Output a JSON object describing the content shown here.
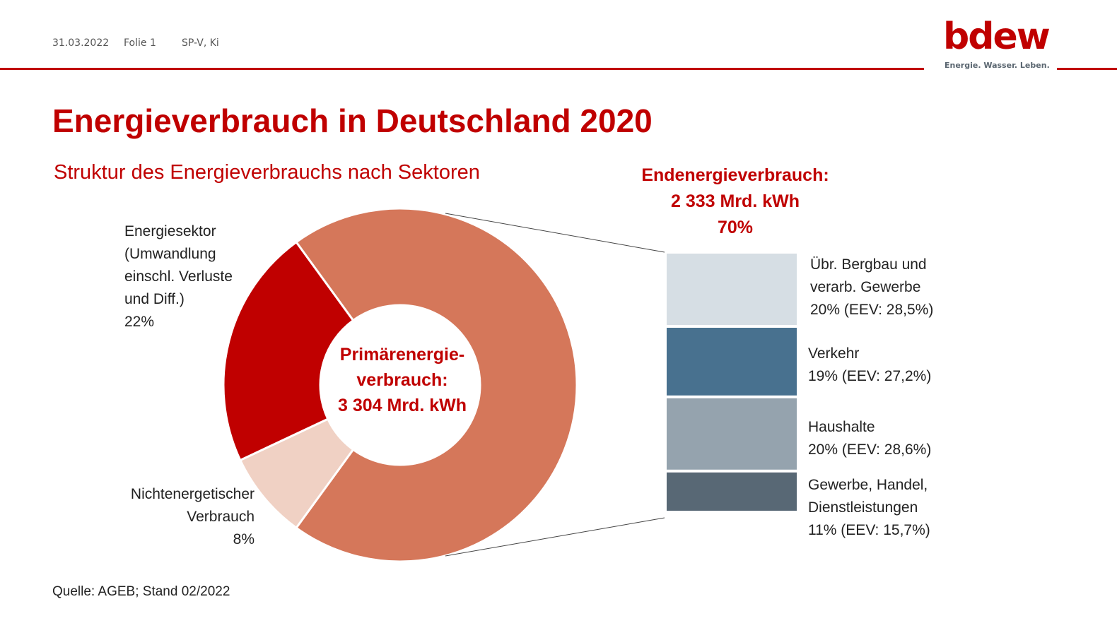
{
  "header": {
    "date": "31.03.2022",
    "slide": "Folie 1",
    "author": "SP-V, Ki"
  },
  "logo": {
    "word": "bdew",
    "tagline": "Energie. Wasser. Leben."
  },
  "title": "Energieverbrauch in Deutschland 2020",
  "subtitle": "Struktur des Energieverbrauchs nach Sektoren",
  "source": "Quelle: AGEB; Stand 02/2022",
  "chart_data": [
    {
      "type": "pie",
      "variant": "donut",
      "center_label": [
        "Primärenergie-",
        "verbrauch:",
        "3 304 Mrd. kWh"
      ],
      "slices": [
        {
          "label": "Endenergieverbrauch",
          "value": 70,
          "color": "#D5775A"
        },
        {
          "label": "Nichtenergetischer Verbrauch",
          "display": "Nichtenergetischer\nVerbrauch\n8%",
          "value": 8,
          "color": "#F0D1C4"
        },
        {
          "label": "Energiesektor (Umwandlung einschl. Verluste und Diff.)",
          "display": "Energiesektor\n(Umwandlung\neinschl. Verluste\nund Diff.)\n22%",
          "value": 22,
          "color": "#C00000"
        }
      ]
    },
    {
      "type": "bar",
      "variant": "stacked-bar-of-pie",
      "title": [
        "Endenergieverbrauch:",
        "2 333 Mrd. kWh",
        "70%"
      ],
      "segments": [
        {
          "label": "Übr. Bergbau und\nverarb. Gewerbe\n20% (EEV: 28,5%)",
          "value": 20,
          "eev": 28.5,
          "color": "#D6DEE4"
        },
        {
          "label": "Verkehr\n19% (EEV: 27,2%)",
          "value": 19,
          "eev": 27.2,
          "color": "#48718F"
        },
        {
          "label": "Haushalte\n20% (EEV: 28,6%)",
          "value": 20,
          "eev": 28.6,
          "color": "#95A3AE"
        },
        {
          "label": "Gewerbe, Handel,\nDienstleistungen\n11% (EEV: 15,7%)",
          "value": 11,
          "eev": 15.7,
          "color": "#586875"
        }
      ]
    }
  ]
}
